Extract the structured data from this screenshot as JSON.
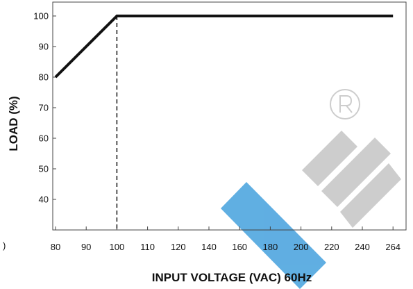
{
  "chart_data": {
    "type": "line",
    "title": "",
    "xlabel": "INPUT VOLTAGE (VAC) 60Hz",
    "ylabel": "LOAD (%)",
    "x_categories": [
      "80",
      "90",
      "100",
      "110",
      "120",
      "140",
      "160",
      "180",
      "200",
      "220",
      "240",
      "264"
    ],
    "y_ticks": [
      40,
      50,
      60,
      70,
      80,
      90,
      100
    ],
    "ylim": [
      30,
      102
    ],
    "series": [
      {
        "points": [
          {
            "x": "80",
            "y": 80
          },
          {
            "x": "100",
            "y": 100
          },
          {
            "x": "264",
            "y": 100
          }
        ]
      }
    ],
    "reference_lines": [
      {
        "x": "100",
        "style": "dashed"
      }
    ],
    "grid": false,
    "stray_text": ")"
  },
  "colors": {
    "line": "#111111",
    "axis": "#444444",
    "watermark_blue": "#4fa6df",
    "watermark_gray": "#c8c8c8"
  },
  "watermark": {
    "icon": "registered-mark-icon"
  }
}
